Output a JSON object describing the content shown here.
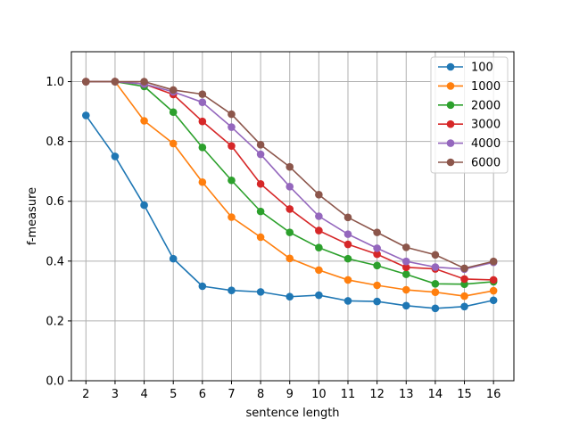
{
  "chart_data": {
    "type": "line",
    "xlabel": "sentence length",
    "ylabel": "f-measure",
    "x": [
      2,
      3,
      4,
      5,
      6,
      7,
      8,
      9,
      10,
      11,
      12,
      13,
      14,
      15,
      16
    ],
    "xlim": [
      1.5,
      16.7
    ],
    "ylim": [
      0.0,
      1.1
    ],
    "yticks": [
      0.0,
      0.2,
      0.4,
      0.6,
      0.8,
      1.0
    ],
    "ytick_labels": [
      "0.0",
      "0.2",
      "0.4",
      "0.6",
      "0.8",
      "1.0"
    ],
    "grid": true,
    "legend_position": "top-right",
    "series": [
      {
        "name": "100",
        "color": "#1f77b4",
        "values": [
          0.887,
          0.75,
          0.587,
          0.408,
          0.316,
          0.302,
          0.297,
          0.281,
          0.286,
          0.267,
          0.265,
          0.251,
          0.242,
          0.248,
          0.269
        ]
      },
      {
        "name": "1000",
        "color": "#ff7f0e",
        "values": [
          1.0,
          1.0,
          0.869,
          0.793,
          0.664,
          0.547,
          0.48,
          0.409,
          0.37,
          0.337,
          0.319,
          0.304,
          0.296,
          0.283,
          0.301
        ]
      },
      {
        "name": "2000",
        "color": "#2ca02c",
        "values": [
          1.0,
          1.0,
          0.984,
          0.898,
          0.78,
          0.67,
          0.566,
          0.496,
          0.445,
          0.408,
          0.385,
          0.356,
          0.324,
          0.323,
          0.331
        ]
      },
      {
        "name": "3000",
        "color": "#d62728",
        "values": [
          1.0,
          1.0,
          0.992,
          0.957,
          0.867,
          0.785,
          0.658,
          0.574,
          0.502,
          0.456,
          0.423,
          0.379,
          0.374,
          0.34,
          0.337
        ]
      },
      {
        "name": "4000",
        "color": "#9467bd",
        "values": [
          1.0,
          1.0,
          0.992,
          0.966,
          0.931,
          0.848,
          0.757,
          0.649,
          0.55,
          0.49,
          0.443,
          0.399,
          0.38,
          0.373,
          0.396
        ]
      },
      {
        "name": "6000",
        "color": "#8c564b",
        "values": [
          1.0,
          1.0,
          1.0,
          0.972,
          0.958,
          0.891,
          0.789,
          0.715,
          0.622,
          0.546,
          0.496,
          0.446,
          0.421,
          0.376,
          0.399
        ]
      }
    ]
  }
}
